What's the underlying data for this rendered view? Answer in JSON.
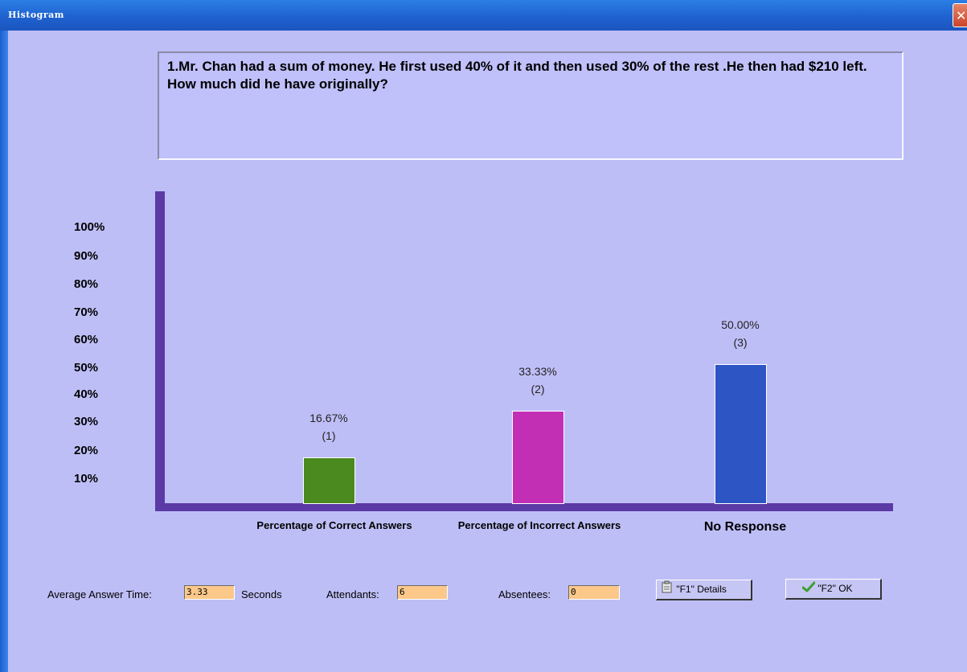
{
  "window": {
    "title": "Histogram",
    "close_glyph": "✕"
  },
  "question": {
    "text": "1.Mr. Chan had a sum of money. He first used 40% of it and then used 30% of the rest .He then had $210 left. How much did he have originally?"
  },
  "chart_data": {
    "type": "bar",
    "categories": [
      "Percentage of Correct Answers",
      "Percentage of Incorrect Answers",
      "No Response"
    ],
    "values": [
      16.67,
      33.33,
      50.0
    ],
    "value_labels": [
      "16.67%",
      "33.33%",
      "50.00%"
    ],
    "counts": [
      "(1)",
      "(2)",
      "(3)"
    ],
    "bar_colors": [
      "#4a8a1e",
      "#c22fb5",
      "#2d55c4"
    ],
    "ylim": [
      0,
      100
    ],
    "yticks": [
      "100%",
      "90%",
      "80%",
      "70%",
      "60%",
      "50%",
      "40%",
      "30%",
      "20%",
      "10%"
    ],
    "axis_color": "#5b3aa6",
    "grid": false
  },
  "stats": {
    "avg_time_label": "Average Answer Time:",
    "avg_time_value": "3.33",
    "avg_time_unit": "Seconds",
    "attendants_label": "Attendants:",
    "attendants_value": "6",
    "absentees_label": "Absentees:",
    "absentees_value": "0"
  },
  "buttons": {
    "details_label": "\"F1\" Details",
    "details_icon": "document-icon",
    "ok_label": "\"F2\" OK",
    "ok_icon": "checkmark-icon"
  }
}
